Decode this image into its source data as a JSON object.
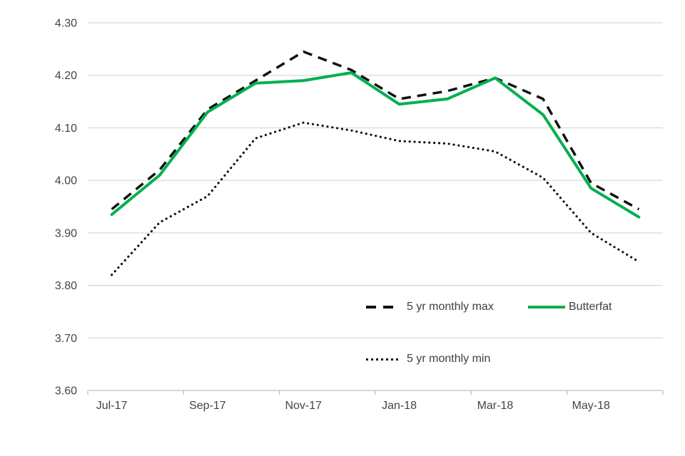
{
  "chart_data": {
    "type": "line",
    "title": "",
    "xlabel": "",
    "ylabel": "",
    "x": [
      "Jul-17",
      "Aug-17",
      "Sep-17",
      "Oct-17",
      "Nov-17",
      "Dec-17",
      "Jan-18",
      "Feb-18",
      "Mar-18",
      "Apr-18",
      "May-18",
      "Jun-18"
    ],
    "x_tick_labels_shown": [
      "Jul-17",
      "Sep-17",
      "Nov-17",
      "Jan-18",
      "Mar-18",
      "May-18"
    ],
    "y_ticks": [
      {
        "value": 3.6,
        "label": "3.60"
      },
      {
        "value": 3.7,
        "label": "3.70"
      },
      {
        "value": 3.8,
        "label": "3.80"
      },
      {
        "value": 3.9,
        "label": "3.90"
      },
      {
        "value": 4.0,
        "label": "4.00"
      },
      {
        "value": 4.1,
        "label": "4.10"
      },
      {
        "value": 4.2,
        "label": "4.20"
      },
      {
        "value": 4.3,
        "label": "4.30"
      }
    ],
    "ylim": [
      3.6,
      4.3
    ],
    "grid": true,
    "legend_position": "inside-bottom-right",
    "series": [
      {
        "name": "5 yr monthly max",
        "style": "dashed",
        "color": "#111111",
        "values": [
          3.945,
          4.02,
          4.135,
          4.19,
          4.245,
          4.21,
          4.155,
          4.17,
          4.195,
          4.155,
          3.995,
          3.945
        ]
      },
      {
        "name": "Butterfat",
        "style": "solid",
        "color": "#00B050",
        "values": [
          3.935,
          4.01,
          4.13,
          4.185,
          4.19,
          4.205,
          4.145,
          4.155,
          4.195,
          4.125,
          3.985,
          3.93
        ]
      },
      {
        "name": "5 yr monthly min",
        "style": "dotted",
        "color": "#111111",
        "values": [
          3.82,
          3.92,
          3.97,
          4.08,
          4.11,
          4.095,
          4.075,
          4.07,
          4.055,
          4.005,
          3.9,
          3.845
        ]
      }
    ]
  },
  "colors": {
    "butterfat_green": "#00B050",
    "series_black": "#111111",
    "gridline": "#D9D9D9",
    "axis_line": "#BFBFBF",
    "axis_text": "#444444"
  }
}
